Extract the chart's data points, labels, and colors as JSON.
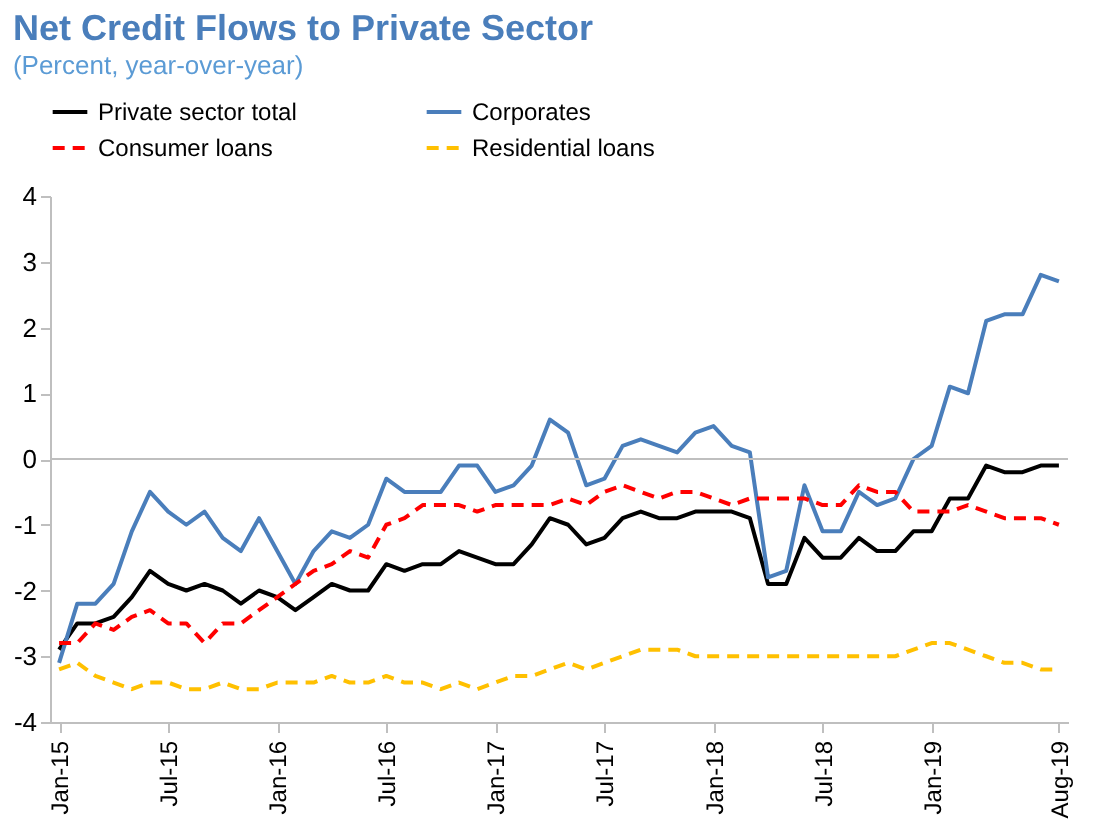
{
  "chart_data": {
    "type": "line",
    "title": "Net Credit Flows to Private Sector",
    "subtitle": "(Percent, year-over-year)",
    "categories": [
      "Jan-15",
      null,
      null,
      null,
      null,
      null,
      "Jul-15",
      null,
      null,
      null,
      null,
      null,
      "Jan-16",
      null,
      null,
      null,
      null,
      null,
      "Jul-16",
      null,
      null,
      null,
      null,
      null,
      "Jan-17",
      null,
      null,
      null,
      null,
      null,
      "Jul-17",
      null,
      null,
      null,
      null,
      null,
      "Jan-18",
      null,
      null,
      null,
      null,
      null,
      "Jul-18",
      null,
      null,
      null,
      null,
      null,
      "Jan-19",
      null,
      null,
      null,
      null,
      null,
      null,
      "Aug-19"
    ],
    "series": [
      {
        "name": "Private sector total",
        "color": "#000000",
        "line_style": "solid",
        "values": [
          -2.9,
          -2.5,
          -2.5,
          -2.4,
          -2.1,
          -1.7,
          -1.9,
          -2.0,
          -1.9,
          -2.0,
          -2.2,
          -2.0,
          -2.1,
          -2.3,
          -2.1,
          -1.9,
          -2.0,
          -2.0,
          -1.6,
          -1.7,
          -1.6,
          -1.6,
          -1.4,
          -1.5,
          -1.6,
          -1.6,
          -1.3,
          -0.9,
          -1.0,
          -1.3,
          -1.2,
          -0.9,
          -0.8,
          -0.9,
          -0.9,
          -0.8,
          -0.8,
          -0.8,
          -0.9,
          -1.9,
          -1.9,
          -1.2,
          -1.5,
          -1.5,
          -1.2,
          -1.4,
          -1.4,
          -1.1,
          -1.1,
          -0.6,
          -0.6,
          -0.1,
          -0.2,
          -0.2,
          -0.1,
          -0.1
        ]
      },
      {
        "name": "Corporates",
        "color": "#4a7ebb",
        "line_style": "solid",
        "values": [
          -3.1,
          -2.2,
          -2.2,
          -1.9,
          -1.1,
          -0.5,
          -0.8,
          -1.0,
          -0.8,
          -1.2,
          -1.4,
          -0.9,
          -1.4,
          -1.9,
          -1.4,
          -1.1,
          -1.2,
          -1.0,
          -0.3,
          -0.5,
          -0.5,
          -0.5,
          -0.1,
          -0.1,
          -0.5,
          -0.4,
          -0.1,
          0.6,
          0.4,
          -0.4,
          -0.3,
          0.2,
          0.3,
          0.2,
          0.1,
          0.4,
          0.5,
          0.2,
          0.1,
          -1.8,
          -1.7,
          -0.4,
          -1.1,
          -1.1,
          -0.5,
          -0.7,
          -0.6,
          0.0,
          0.2,
          1.1,
          1.0,
          2.1,
          2.2,
          2.2,
          2.8,
          2.7
        ]
      },
      {
        "name": "Consumer loans",
        "color": "#ff0000",
        "line_style": "dashed",
        "values": [
          -2.8,
          -2.8,
          -2.5,
          -2.6,
          -2.4,
          -2.3,
          -2.5,
          -2.5,
          -2.8,
          -2.5,
          -2.5,
          -2.3,
          -2.1,
          -1.9,
          -1.7,
          -1.6,
          -1.4,
          -1.5,
          -1.0,
          -0.9,
          -0.7,
          -0.7,
          -0.7,
          -0.8,
          -0.7,
          -0.7,
          -0.7,
          -0.7,
          -0.6,
          -0.7,
          -0.5,
          -0.4,
          -0.5,
          -0.6,
          -0.5,
          -0.5,
          -0.6,
          -0.7,
          -0.6,
          -0.6,
          -0.6,
          -0.6,
          -0.7,
          -0.7,
          -0.4,
          -0.5,
          -0.5,
          -0.8,
          -0.8,
          -0.8,
          -0.7,
          -0.8,
          -0.9,
          -0.9,
          -0.9,
          -1.0
        ]
      },
      {
        "name": "Residential loans",
        "color": "#ffc000",
        "line_style": "dashed",
        "values": [
          -3.2,
          -3.1,
          -3.3,
          -3.4,
          -3.5,
          -3.4,
          -3.4,
          -3.5,
          -3.5,
          -3.4,
          -3.5,
          -3.5,
          -3.4,
          -3.4,
          -3.4,
          -3.3,
          -3.4,
          -3.4,
          -3.3,
          -3.4,
          -3.4,
          -3.5,
          -3.4,
          -3.5,
          -3.4,
          -3.3,
          -3.3,
          -3.2,
          -3.1,
          -3.2,
          -3.1,
          -3.0,
          -2.9,
          -2.9,
          -2.9,
          -3.0,
          -3.0,
          -3.0,
          -3.0,
          -3.0,
          -3.0,
          -3.0,
          -3.0,
          -3.0,
          -3.0,
          -3.0,
          -3.0,
          -2.9,
          -2.8,
          -2.8,
          -2.9,
          -3.0,
          -3.1,
          -3.1,
          -3.2,
          -3.2
        ]
      }
    ],
    "ylim": [
      -4,
      4
    ],
    "yticks": [
      -4,
      -3,
      -2,
      -1,
      0,
      1,
      2,
      3,
      4
    ],
    "ref_lines": [
      {
        "axis": "y",
        "value": 0,
        "color": "#bfbfbf"
      }
    ],
    "legend": "top"
  }
}
